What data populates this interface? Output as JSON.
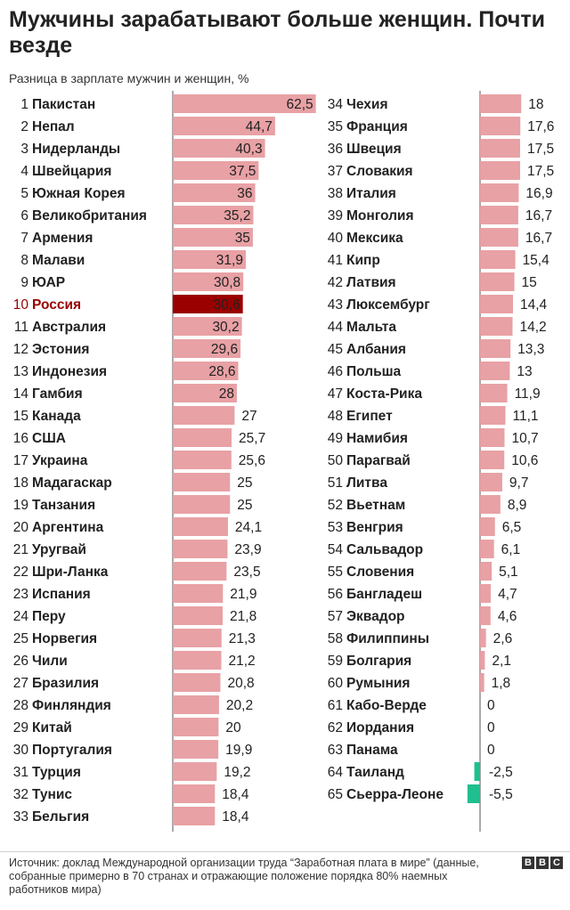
{
  "header": {
    "title": "Мужчины зарабатывают больше женщин. Почти везде",
    "subtitle": "Разница в зарплате мужчин и женщин, %"
  },
  "footer": {
    "source": "Источник: доклад  Международной организации труда “Заработная плата в мире” (данные, собранные примерно в 70 странах и отражающие положение порядка 80% наемных работников мира)",
    "logo_letters": [
      "B",
      "B",
      "C"
    ]
  },
  "colors": {
    "positive": "#e8a1a5",
    "highlight": "#9a0000",
    "negative": "#1fbf8f",
    "axis": "#555555",
    "text": "#222222"
  },
  "chart_data": {
    "type": "bar",
    "orientation": "horizontal",
    "title": "Мужчины зарабатывают больше женщин. Почти везде",
    "subtitle": "Разница в зарплате мужчин и женщин, %",
    "highlight": "Россия",
    "rows": [
      {
        "rank": "1",
        "country": "Пакистан",
        "value": 62.5,
        "label": "62,5"
      },
      {
        "rank": "2",
        "country": "Непал",
        "value": 44.7,
        "label": "44,7"
      },
      {
        "rank": "3",
        "country": "Нидерланды",
        "value": 40.3,
        "label": "40,3"
      },
      {
        "rank": "4",
        "country": "Швейцария",
        "value": 37.5,
        "label": "37,5"
      },
      {
        "rank": "5",
        "country": "Южная Корея",
        "value": 36,
        "label": "36"
      },
      {
        "rank": "6",
        "country": "Великобритания",
        "value": 35.2,
        "label": "35,2"
      },
      {
        "rank": "7",
        "country": "Армения",
        "value": 35,
        "label": "35"
      },
      {
        "rank": "8",
        "country": "Малави",
        "value": 31.9,
        "label": "31,9"
      },
      {
        "rank": "9",
        "country": "ЮАР",
        "value": 30.8,
        "label": "30,8"
      },
      {
        "rank": "10",
        "country": "Россия",
        "value": 30.6,
        "label": "30,6"
      },
      {
        "rank": "11",
        "country": "Австралия",
        "value": 30.2,
        "label": "30,2"
      },
      {
        "rank": "12",
        "country": "Эстония",
        "value": 29.6,
        "label": "29,6"
      },
      {
        "rank": "13",
        "country": "Индонезия",
        "value": 28.6,
        "label": "28,6"
      },
      {
        "rank": "14",
        "country": "Гамбия",
        "value": 28,
        "label": "28"
      },
      {
        "rank": "15",
        "country": "Канада",
        "value": 27,
        "label": "27"
      },
      {
        "rank": "16",
        "country": "США",
        "value": 25.7,
        "label": "25,7"
      },
      {
        "rank": "17",
        "country": "Украина",
        "value": 25.6,
        "label": "25,6"
      },
      {
        "rank": "18",
        "country": "Мадагаскар",
        "value": 25,
        "label": "25"
      },
      {
        "rank": "19",
        "country": "Танзания",
        "value": 25,
        "label": "25"
      },
      {
        "rank": "20",
        "country": "Аргентина",
        "value": 24.1,
        "label": "24,1"
      },
      {
        "rank": "21",
        "country": "Уругвай",
        "value": 23.9,
        "label": "23,9"
      },
      {
        "rank": "22",
        "country": "Шри-Ланка",
        "value": 23.5,
        "label": "23,5"
      },
      {
        "rank": "23",
        "country": "Испания",
        "value": 21.9,
        "label": "21,9"
      },
      {
        "rank": "24",
        "country": "Перу",
        "value": 21.8,
        "label": "21,8"
      },
      {
        "rank": "25",
        "country": "Норвегия",
        "value": 21.3,
        "label": "21,3"
      },
      {
        "rank": "26",
        "country": "Чили",
        "value": 21.2,
        "label": "21,2"
      },
      {
        "rank": "27",
        "country": "Бразилия",
        "value": 20.8,
        "label": "20,8"
      },
      {
        "rank": "28",
        "country": "Финляндия",
        "value": 20.2,
        "label": "20,2"
      },
      {
        "rank": "29",
        "country": "Китай",
        "value": 20,
        "label": "20"
      },
      {
        "rank": "30",
        "country": "Португалия",
        "value": 19.9,
        "label": "19,9"
      },
      {
        "rank": "31",
        "country": "Турция",
        "value": 19.2,
        "label": "19,2"
      },
      {
        "rank": "32",
        "country": "Тунис",
        "value": 18.4,
        "label": "18,4"
      },
      {
        "rank": "33",
        "country": "Бельгия",
        "value": 18.4,
        "label": "18,4"
      },
      {
        "rank": "34",
        "country": "Чехия",
        "value": 18,
        "label": "18"
      },
      {
        "rank": "35",
        "country": "Франция",
        "value": 17.6,
        "label": "17,6"
      },
      {
        "rank": "36",
        "country": "Швеция",
        "value": 17.5,
        "label": "17,5"
      },
      {
        "rank": "37",
        "country": "Словакия",
        "value": 17.5,
        "label": "17,5"
      },
      {
        "rank": "38",
        "country": "Италия",
        "value": 16.9,
        "label": "16,9"
      },
      {
        "rank": "39",
        "country": "Монголия",
        "value": 16.7,
        "label": "16,7"
      },
      {
        "rank": "40",
        "country": "Мексика",
        "value": 16.7,
        "label": "16,7"
      },
      {
        "rank": "41",
        "country": "Кипр",
        "value": 15.4,
        "label": "15,4"
      },
      {
        "rank": "42",
        "country": "Латвия",
        "value": 15,
        "label": "15"
      },
      {
        "rank": "43",
        "country": "Люксембург",
        "value": 14.4,
        "label": "14,4"
      },
      {
        "rank": "44",
        "country": "Мальта",
        "value": 14.2,
        "label": "14,2"
      },
      {
        "rank": "45",
        "country": "Албания",
        "value": 13.3,
        "label": "13,3"
      },
      {
        "rank": "46",
        "country": "Польша",
        "value": 13,
        "label": "13"
      },
      {
        "rank": "47",
        "country": "Коста-Рика",
        "value": 11.9,
        "label": "11,9"
      },
      {
        "rank": "48",
        "country": "Египет",
        "value": 11.1,
        "label": "11,1"
      },
      {
        "rank": "49",
        "country": "Намибия",
        "value": 10.7,
        "label": "10,7"
      },
      {
        "rank": "50",
        "country": "Парагвай",
        "value": 10.6,
        "label": "10,6"
      },
      {
        "rank": "51",
        "country": "Литва",
        "value": 9.7,
        "label": "9,7"
      },
      {
        "rank": "52",
        "country": "Вьетнам",
        "value": 8.9,
        "label": "8,9"
      },
      {
        "rank": "53",
        "country": "Венгрия",
        "value": 6.5,
        "label": "6,5"
      },
      {
        "rank": "54",
        "country": "Сальвадор",
        "value": 6.1,
        "label": "6,1"
      },
      {
        "rank": "55",
        "country": "Словения",
        "value": 5.1,
        "label": "5,1"
      },
      {
        "rank": "56",
        "country": "Бангладеш",
        "value": 4.7,
        "label": "4,7"
      },
      {
        "rank": "57",
        "country": "Эквадор",
        "value": 4.6,
        "label": "4,6"
      },
      {
        "rank": "58",
        "country": "Филиппины",
        "value": 2.6,
        "label": "2,6"
      },
      {
        "rank": "59",
        "country": "Болгария",
        "value": 2.1,
        "label": "2,1"
      },
      {
        "rank": "60",
        "country": "Румыния",
        "value": 1.8,
        "label": "1,8"
      },
      {
        "rank": "61",
        "country": "Кабо-Верде",
        "value": 0,
        "label": "0"
      },
      {
        "rank": "62",
        "country": "Иордания",
        "value": 0,
        "label": "0"
      },
      {
        "rank": "63",
        "country": "Панама",
        "value": 0,
        "label": "0"
      },
      {
        "rank": "64",
        "country": "Таиланд",
        "value": -2.5,
        "label": "-2,5"
      },
      {
        "rank": "65",
        "country": "Сьерра-Леоне",
        "value": -5.5,
        "label": "-5,5"
      }
    ]
  }
}
